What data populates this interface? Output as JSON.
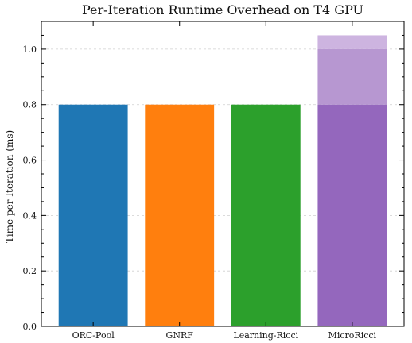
{
  "chart_data": {
    "type": "bar",
    "title": "Per-Iteration Runtime Overhead on T4 GPU",
    "xlabel": "",
    "ylabel": "Time per Iteration (ms)",
    "ylim": [
      0,
      1.1
    ],
    "yticks": [
      "0.0",
      "0.2",
      "0.4",
      "0.6",
      "0.8",
      "1.0"
    ],
    "grid": true,
    "categories": [
      "ORC-Pool",
      "GNRF",
      "Learning-Ricci",
      "MicroRicci"
    ],
    "series": [
      {
        "values": [
          0.8,
          0.8,
          0.8,
          0.8
        ],
        "colors": [
          "#1f77b4",
          "#ff7f0e",
          "#2ca02c",
          "#9467bd"
        ]
      },
      {
        "values": [
          0,
          0,
          0,
          0.2
        ],
        "colors": [
          "#b797d1",
          "#b797d1",
          "#b797d1",
          "#b797d1"
        ]
      },
      {
        "values": [
          0,
          0,
          0,
          0.05
        ],
        "colors": [
          "#cdb4e0",
          "#cdb4e0",
          "#cdb4e0",
          "#cdb4e0"
        ]
      }
    ]
  }
}
